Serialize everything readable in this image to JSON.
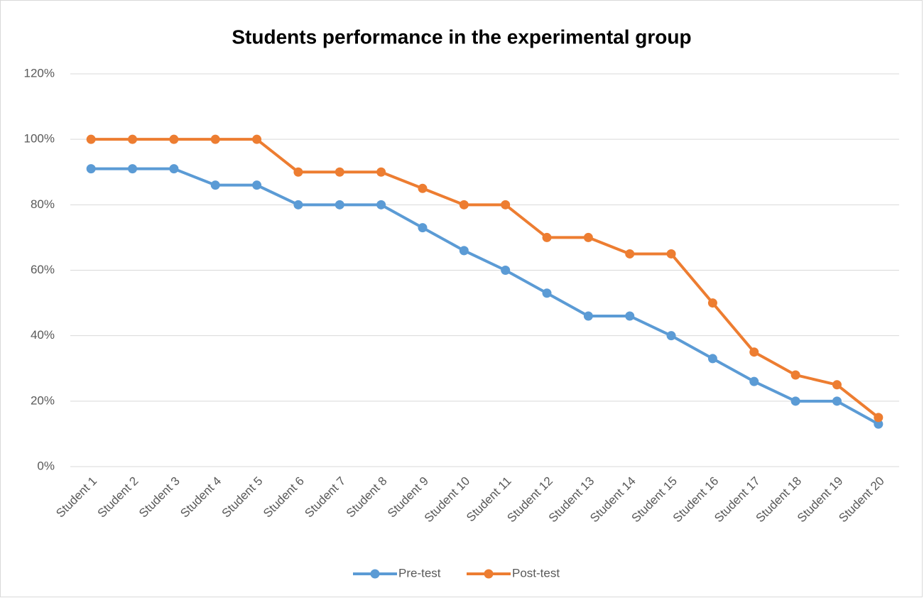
{
  "chart_data": {
    "type": "line",
    "title": "Students performance in the experimental group",
    "categories": [
      "Student 1",
      "Student 2",
      "Student 3",
      "Student 4",
      "Student 5",
      "Student 6",
      "Student 7",
      "Student 8",
      "Student 9",
      "Student 10",
      "Student 11",
      "Student 12",
      "Student 13",
      "Student 14",
      "Student 15",
      "Student 16",
      "Student 17",
      "Student 18",
      "Student 19",
      "Student 20"
    ],
    "series": [
      {
        "name": "Pre-test",
        "color": "#5b9bd5",
        "values": [
          91,
          91,
          91,
          86,
          86,
          80,
          80,
          80,
          73,
          66,
          60,
          53,
          46,
          46,
          40,
          33,
          26,
          20,
          20,
          13
        ]
      },
      {
        "name": "Post-test",
        "color": "#ed7d31",
        "values": [
          100,
          100,
          100,
          100,
          100,
          90,
          90,
          90,
          85,
          80,
          80,
          70,
          70,
          65,
          65,
          50,
          35,
          28,
          25,
          15
        ]
      }
    ],
    "ylim": [
      0,
      120
    ],
    "yticks": [
      {
        "value": 0,
        "label": "0%"
      },
      {
        "value": 20,
        "label": "20%"
      },
      {
        "value": 40,
        "label": "40%"
      },
      {
        "value": 60,
        "label": "60%"
      },
      {
        "value": 80,
        "label": "80%"
      },
      {
        "value": 100,
        "label": "100%"
      },
      {
        "value": 120,
        "label": "120%"
      }
    ],
    "grid": true,
    "legend": "bottom"
  }
}
